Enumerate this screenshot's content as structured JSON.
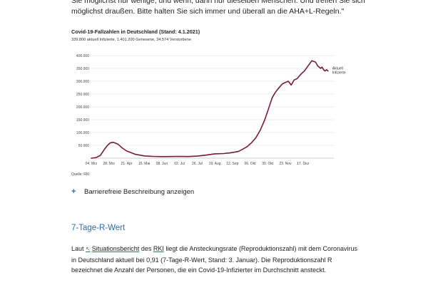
{
  "intro": {
    "line1": "Sie möglichst nur wenige, und wenn, dann nur dieselben Menschen. Und treffen Sie sich",
    "line2": "möglichst draußen. Bitte halten Sie sich immer und überall an die AHA+L-Regeln.\""
  },
  "chart_title": "Covid-19-Fallzahlen in Deutschland (Stand: 4.1.2021)",
  "chart_subtitle": "339.800 aktuell Infizierte, 1.401.200 Genesene, 34.574 Verstorbene",
  "chart_source": "Quelle: RKI",
  "colors": {
    "line": "#7a1a36",
    "accent": "#2a6cb3",
    "grid": "#dddddd",
    "tick": "#444444"
  },
  "chart_data": {
    "type": "line",
    "x_tick_labels": [
      "04. Mrz",
      "28. Mrz",
      "21. Apr",
      "15. Mai",
      "08. Jun",
      "02. Jul",
      "26. Jul",
      "19. Aug",
      "12. Sep",
      "06. Okt",
      "30. Okt",
      "23. Nov",
      "17. Dez"
    ],
    "y_tick_labels": [
      "50.000",
      "100.000",
      "150.000",
      "200.000",
      "250.000",
      "300.000",
      "350.000",
      "400.000"
    ],
    "y_ticks": [
      50000,
      100000,
      150000,
      200000,
      250000,
      300000,
      350000,
      400000
    ],
    "ylim": [
      0,
      400000
    ],
    "series": [
      {
        "name": "Aktuell Infizierte",
        "x_days": [
          0,
          6,
          12,
          18,
          22,
          26,
          30,
          36,
          42,
          48,
          60,
          72,
          84,
          96,
          108,
          120,
          132,
          144,
          156,
          168,
          180,
          190,
          200,
          206,
          212,
          218,
          224,
          230,
          236,
          242,
          246,
          250,
          254,
          260,
          264,
          268,
          272,
          276,
          280,
          286,
          290,
          295,
          300,
          305,
          308,
          312,
          314,
          316,
          318,
          320,
          322
        ],
        "values": [
          100,
          2000,
          10000,
          35000,
          50000,
          60000,
          62000,
          55000,
          40000,
          28000,
          15000,
          9000,
          7000,
          6000,
          6500,
          7000,
          6500,
          8000,
          12000,
          17000,
          18000,
          21000,
          26000,
          35000,
          45000,
          60000,
          80000,
          110000,
          150000,
          200000,
          235000,
          255000,
          270000,
          290000,
          295000,
          300000,
          285000,
          305000,
          310000,
          330000,
          340000,
          360000,
          380000,
          375000,
          360000,
          350000,
          355000,
          345000,
          340000,
          345000,
          339800
        ]
      }
    ],
    "annotation": {
      "line1": "Aktuell",
      "line2": "Infizierte"
    }
  },
  "expander": {
    "icon": "plus-icon",
    "label": "Barrierefreie Beschreibung anzeigen"
  },
  "section": {
    "heading": "7-Tage-R-Wert",
    "p_before": "Laut",
    "link_icon": "arrow-up-left-icon",
    "link_text": "Situationsbericht",
    "p_middle": "des",
    "rki_link": "RKI",
    "p_after": "liegt die Ansteckungsrate (Reproduktionszahl) mit dem Coronavirus in Deutschland aktuell bei 0,91 (7-Tage-R-Wert, Stand: 3. Januar). Die Reproduktionszahl R bezeichnet die Anzahl der Personen, die ein Covid-19-Infizierter im Durchschnitt ansteckt."
  }
}
